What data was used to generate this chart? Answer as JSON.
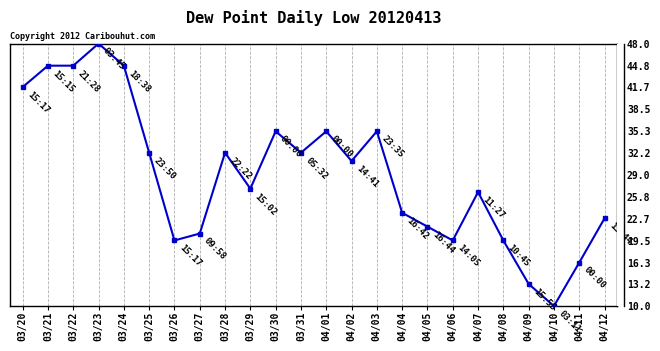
{
  "title": "Dew Point Daily Low 20120413",
  "copyright": "Copyright 2012 Caribouhut.com",
  "dates": [
    "03/20",
    "03/21",
    "03/22",
    "03/23",
    "03/24",
    "03/25",
    "03/26",
    "03/27",
    "03/28",
    "03/29",
    "03/30",
    "03/31",
    "04/01",
    "04/02",
    "04/03",
    "04/04",
    "04/05",
    "04/06",
    "04/07",
    "04/08",
    "04/09",
    "04/10",
    "04/11",
    "04/12"
  ],
  "values": [
    41.7,
    44.8,
    44.8,
    48.0,
    44.8,
    32.2,
    19.5,
    20.5,
    32.2,
    27.0,
    35.3,
    32.2,
    35.3,
    31.0,
    35.3,
    23.5,
    21.5,
    19.5,
    26.5,
    19.5,
    13.2,
    10.0,
    16.3,
    22.7
  ],
  "time_labels": [
    "15:17",
    "15:15",
    "21:28",
    "03:45",
    "18:38",
    "23:50",
    "15:17",
    "09:58",
    "22:22",
    "15:02",
    "00:00",
    "05:32",
    "00:00",
    "14:41",
    "23:35",
    "16:42",
    "16:44",
    "14:05",
    "11:27",
    "10:45",
    "15:55",
    "03:11",
    "00:00",
    "13:44"
  ],
  "ylim": [
    10.0,
    48.0
  ],
  "yticks": [
    10.0,
    13.2,
    16.3,
    19.5,
    22.7,
    25.8,
    29.0,
    32.2,
    35.3,
    38.5,
    41.7,
    44.8,
    48.0
  ],
  "line_color": "#0000cc",
  "marker_color": "#0000cc",
  "bg_color": "#ffffff",
  "grid_color": "#b0b0b0",
  "title_fontsize": 11,
  "label_fontsize": 7,
  "annotation_fontsize": 6.5
}
